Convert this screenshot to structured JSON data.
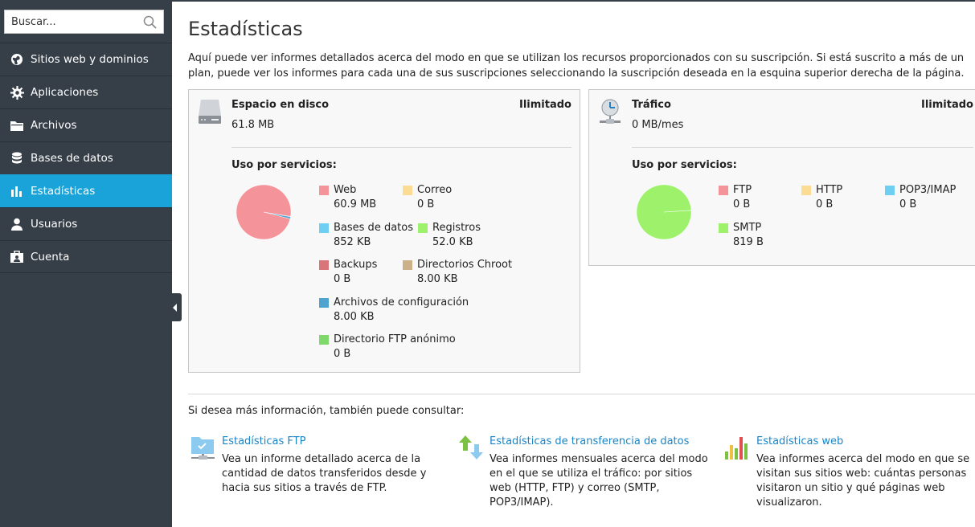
{
  "sidebar": {
    "search_placeholder": "Buscar...",
    "items": [
      {
        "label": "Sitios web y dominios",
        "icon": "globe-icon"
      },
      {
        "label": "Aplicaciones",
        "icon": "gear-icon"
      },
      {
        "label": "Archivos",
        "icon": "folder-icon"
      },
      {
        "label": "Bases de datos",
        "icon": "database-icon"
      },
      {
        "label": "Estadísticas",
        "icon": "bar-chart-icon",
        "active": true
      },
      {
        "label": "Usuarios",
        "icon": "user-icon"
      },
      {
        "label": "Cuenta",
        "icon": "account-card-icon"
      }
    ]
  },
  "page": {
    "title": "Estadísticas",
    "intro": "Aquí puede ver informes detallados acerca del modo en que se utilizan los recursos proporcionados con su suscripción. Si está suscrito a más de un plan, puede ver los informes para cada una de sus suscripciones seleccionando la suscripción deseada en la esquina superior derecha de la página."
  },
  "disk": {
    "title": "Espacio en disco",
    "limit": "Ilimitado",
    "value": "61.8 MB",
    "uso_label": "Uso por servicios:",
    "legend": [
      {
        "label": "Web",
        "value": "60.9 MB",
        "color": "#f4949a"
      },
      {
        "label": "Correo",
        "value": "0 B",
        "color": "#fbdc92"
      },
      {
        "label": "Bases de datos",
        "value": "852 KB",
        "color": "#6fcff2"
      },
      {
        "label": "Registros",
        "value": "52.0 KB",
        "color": "#9ef26b"
      },
      {
        "label": "Backups",
        "value": "0 B",
        "color": "#d97478"
      },
      {
        "label": "Directorios Chroot",
        "value": "8.00 KB",
        "color": "#ccb089"
      },
      {
        "label": "Archivos de configuración",
        "value": "8.00 KB",
        "color": "#4fa3cf"
      },
      {
        "label": "Directorio FTP anónimo",
        "value": "0 B",
        "color": "#7fd86a"
      }
    ]
  },
  "traffic": {
    "title": "Tráfico",
    "limit": "Ilimitado",
    "value": "0 MB/mes",
    "uso_label": "Uso por servicios:",
    "legend": [
      {
        "label": "FTP",
        "value": "0 B",
        "color": "#f4949a"
      },
      {
        "label": "HTTP",
        "value": "0 B",
        "color": "#fbdc92"
      },
      {
        "label": "POP3/IMAP",
        "value": "0 B",
        "color": "#6fcff2"
      },
      {
        "label": "SMTP",
        "value": "819 B",
        "color": "#9ef26b"
      }
    ]
  },
  "more": {
    "intro": "Si desea más información, también puede consultar:",
    "links": [
      {
        "title": "Estadísticas FTP",
        "desc": "Vea un informe detallado acerca de la cantidad de datos transferidos desde y hacia sus sitios a través de FTP.",
        "icon": "ftp-stats-icon"
      },
      {
        "title": "Estadísticas de transferencia de datos",
        "desc": "Vea informes mensuales acerca del modo en el que se utiliza el tráfico: por sitios web (HTTP, FTP) y correo (SMTP, POP3/IMAP).",
        "icon": "transfer-arrows-icon"
      },
      {
        "title": "Estadísticas web",
        "desc": "Vea informes acerca del modo en que se visitan sus sitios web: cuántas personas visitaron un sitio y qué páginas web visualizaron.",
        "icon": "web-stats-chart-icon"
      }
    ]
  },
  "chart_data": [
    {
      "type": "pie",
      "categories": [
        "Web",
        "Correo",
        "Bases de datos",
        "Registros",
        "Backups",
        "Directorios Chroot",
        "Archivos de configuración",
        "Directorio FTP anónimo"
      ],
      "values": [
        60.9,
        0,
        0.852,
        0.052,
        0,
        0.008,
        0.008,
        0
      ]
    },
    {
      "type": "pie",
      "categories": [
        "FTP",
        "HTTP",
        "POP3/IMAP",
        "SMTP"
      ],
      "values": [
        0,
        0,
        0,
        819
      ]
    }
  ]
}
